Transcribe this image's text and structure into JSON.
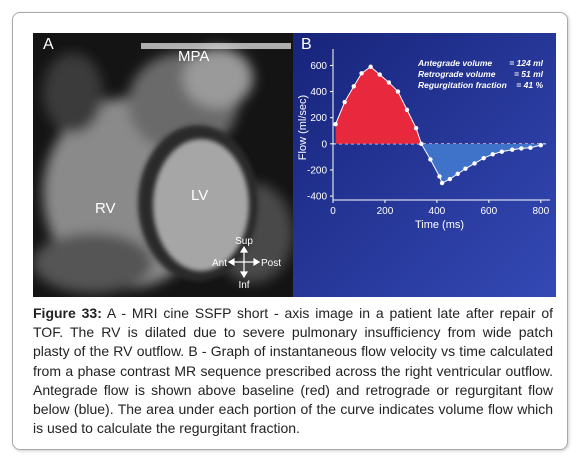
{
  "panel_a": {
    "label": "A",
    "structures": [
      "MPA",
      "RV",
      "LV"
    ],
    "orientation": {
      "up": "Sup",
      "left": "Ant",
      "right": "Post",
      "down": "Inf"
    }
  },
  "chart_data": {
    "type": "area-line",
    "panel_label": "B",
    "x_label": "Time (ms)",
    "y_label": "Flow (ml/sec)",
    "annotations": [
      {
        "label": "Antegrade volume",
        "value": "= 124 ml"
      },
      {
        "label": "Retrograde volume",
        "value": "= 51 ml"
      },
      {
        "label": "Regurgitation fraction",
        "value": "= 41 %"
      }
    ],
    "x": [
      10,
      45,
      80,
      110,
      145,
      180,
      215,
      250,
      285,
      320,
      340,
      375,
      410,
      420,
      450,
      480,
      510,
      545,
      580,
      615,
      650,
      690,
      725,
      760,
      800
    ],
    "series": [
      {
        "values": [
          150,
          320,
          440,
          540,
          590,
          530,
          470,
          400,
          260,
          120,
          0,
          -120,
          -250,
          -300,
          -270,
          -230,
          -190,
          -150,
          -110,
          -80,
          -60,
          -45,
          -35,
          -30,
          -10
        ],
        "color": "#ffffff",
        "above_color": "#e8283c",
        "below_color": "#3f73c9"
      }
    ],
    "xlim": [
      0,
      820
    ],
    "ylim": [
      -430,
      680
    ],
    "xticks": [
      0,
      200,
      400,
      600,
      800
    ],
    "yticks": [
      -400,
      -200,
      0,
      200,
      400,
      600
    ],
    "baseline": 0,
    "background": "#22329a"
  },
  "caption": {
    "label": "Figure 33:",
    "text": " A - MRI cine SSFP short - axis image in a patient late after repair of TOF. The RV is dilated due to severe pulmonary insufficiency from wide patch plasty of the RV outflow. B - Graph of instantaneous flow velocity vs time calculated from a phase contrast MR sequence prescribed across the right ventricular outflow. Antegrade flow is shown above baseline (red) and retrograde or regurgitant flow below (blue). The area under each portion of the curve indicates volume flow which is used to calculate the regurgitant fraction."
  }
}
